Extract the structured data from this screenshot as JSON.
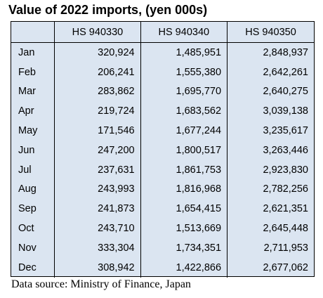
{
  "chart_data": {
    "type": "table",
    "title": "Value of 2022 imports, (yen 000s)",
    "columns": [
      "",
      "HS 940330",
      "HS 940340",
      "HS 940350"
    ],
    "rows": [
      [
        "Jan",
        "320,924",
        "1,485,951",
        "2,848,937"
      ],
      [
        "Feb",
        "206,241",
        "1,555,380",
        "2,642,261"
      ],
      [
        "Mar",
        "283,862",
        "1,695,770",
        "2,640,275"
      ],
      [
        "Apr",
        "219,724",
        "1,683,562",
        "3,039,138"
      ],
      [
        "May",
        "171,546",
        "1,677,244",
        "3,235,617"
      ],
      [
        "Jun",
        "247,200",
        "1,800,517",
        "3,263,446"
      ],
      [
        "Jul",
        "237,631",
        "1,861,753",
        "2,923,830"
      ],
      [
        "Aug",
        "243,993",
        "1,816,968",
        "2,782,256"
      ],
      [
        "Sep",
        "241,873",
        "1,654,415",
        "2,621,351"
      ],
      [
        "Oct",
        "243,710",
        "1,513,669",
        "2,645,448"
      ],
      [
        "Nov",
        "333,304",
        "1,734,351",
        "2,711,953"
      ],
      [
        "Dec",
        "308,942",
        "1,422,866",
        "2,677,062"
      ]
    ],
    "source": "Data source: Ministry of Finance, Japan"
  },
  "colors": {
    "table_background": "#dbe5f1",
    "text": "#000000",
    "border": "#000000"
  }
}
